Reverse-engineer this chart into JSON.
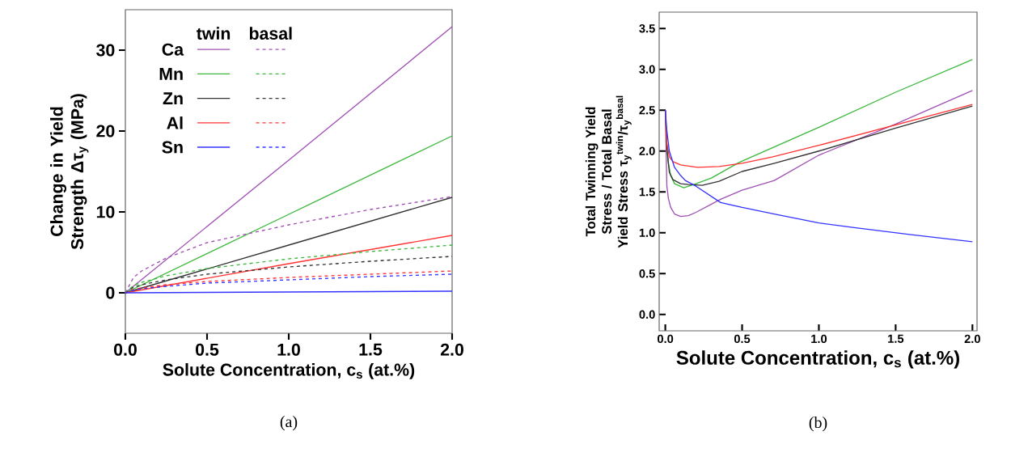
{
  "chart_data": [
    {
      "type": "line",
      "xlabel": "Solute Concentration, c$_{s}$ (at.%)",
      "ylabel": "Change in Yield Strength Δτ$_{y}$ (MPa)",
      "xlim": [
        0,
        2
      ],
      "ylim": [
        -5,
        35
      ],
      "xticks": [
        {
          "value": 0,
          "label": "0.0"
        },
        {
          "value": 0.5,
          "label": "0.5"
        },
        {
          "value": 1,
          "label": "1.0"
        },
        {
          "value": 1.5,
          "label": "1.5"
        },
        {
          "value": 2,
          "label": "2.0"
        }
      ],
      "yticks": [
        0,
        10,
        20,
        30
      ],
      "legend": "top left",
      "annotations": [
        "twin",
        "basal",
        "(a)"
      ],
      "series": [
        {
          "name": "Ca",
          "color": "#a050b4",
          "line_style": "solid",
          "x": [
            0,
            1,
            2
          ],
          "values": [
            0,
            16.4,
            32.9
          ]
        },
        {
          "name": "Mn",
          "color": "#3cb83c",
          "line_style": "solid",
          "x": [
            0,
            1,
            2
          ],
          "values": [
            0,
            9.7,
            19.4
          ]
        },
        {
          "name": "Zn",
          "color": "#333333",
          "line_style": "solid",
          "x": [
            0,
            1,
            2
          ],
          "values": [
            0,
            5.9,
            11.8
          ]
        },
        {
          "name": "Al",
          "color": "#ff3333",
          "line_style": "solid",
          "x": [
            0,
            1,
            2
          ],
          "values": [
            0,
            3.6,
            7.1
          ]
        },
        {
          "name": "Sn",
          "color": "#3333ff",
          "line_style": "solid",
          "x": [
            0,
            1,
            2
          ],
          "values": [
            0,
            0.1,
            0.2
          ]
        },
        {
          "color": "#a050b4",
          "line_style": "dashed",
          "x": [
            0,
            0.05,
            0.1,
            0.25,
            0.5,
            1,
            1.5,
            2
          ],
          "values": [
            0,
            1.9,
            2.7,
            4.3,
            6.2,
            8.4,
            10.3,
            11.9
          ]
        },
        {
          "color": "#3cb83c",
          "line_style": "dashed",
          "x": [
            0,
            0.05,
            0.1,
            0.25,
            0.5,
            1,
            1.5,
            2
          ],
          "values": [
            0,
            0.9,
            1.3,
            2.1,
            3.0,
            4.2,
            5.1,
            5.9
          ]
        },
        {
          "color": "#333333",
          "line_style": "dashed",
          "x": [
            0,
            0.05,
            0.1,
            0.25,
            0.5,
            1,
            1.5,
            2
          ],
          "values": [
            0,
            0.7,
            1.0,
            1.6,
            2.3,
            3.2,
            3.9,
            4.5
          ]
        },
        {
          "color": "#ff3333",
          "line_style": "dashed",
          "x": [
            0,
            0.05,
            0.1,
            0.25,
            0.5,
            1,
            1.5,
            2
          ],
          "values": [
            0,
            0.4,
            0.6,
            1.0,
            1.4,
            1.9,
            2.3,
            2.7
          ]
        },
        {
          "color": "#3333ff",
          "line_style": "dashed",
          "x": [
            0,
            0.05,
            0.1,
            0.25,
            0.5,
            1,
            1.5,
            2
          ],
          "values": [
            0,
            0.3,
            0.5,
            0.8,
            1.2,
            1.6,
            2.0,
            2.3
          ]
        }
      ]
    },
    {
      "type": "line",
      "xlabel": "Solute Concentration, c$_{s}$ (at.%)",
      "ylabel": "Total Twinning Yield Stress / Total Basal Yield Stress τ$_{y}$$^{twin}$/τ$_{y}$$^{basal}$",
      "xlim": [
        -0.04,
        2.03
      ],
      "ylim": [
        -0.2,
        3.7
      ],
      "xticks": [
        {
          "value": 0,
          "label": "0.0"
        },
        {
          "value": 0.5,
          "label": "0.5"
        },
        {
          "value": 1,
          "label": "1.0"
        },
        {
          "value": 1.5,
          "label": "1.5"
        },
        {
          "value": 2,
          "label": "2.0"
        }
      ],
      "yticks": [
        {
          "value": 0,
          "label": "0.0"
        },
        {
          "value": 0.5,
          "label": "0.5"
        },
        {
          "value": 1,
          "label": "1.0"
        },
        {
          "value": 1.5,
          "label": "1.5"
        },
        {
          "value": 2,
          "label": "2.0"
        },
        {
          "value": 2.5,
          "label": "2.5"
        },
        {
          "value": 3,
          "label": "3.0"
        },
        {
          "value": 3.5,
          "label": "3.5"
        }
      ],
      "annotations": [
        "(b)"
      ],
      "series": [
        {
          "color": "#a050b4",
          "x": [
            0,
            0.01,
            0.02,
            0.035,
            0.06,
            0.1,
            0.15,
            0.2,
            0.36,
            0.5,
            0.71,
            1.0,
            1.5,
            2.0
          ],
          "values": [
            2.5,
            1.57,
            1.42,
            1.31,
            1.23,
            1.2,
            1.21,
            1.25,
            1.41,
            1.52,
            1.64,
            1.95,
            2.33,
            2.74
          ]
        },
        {
          "color": "#3cb83c",
          "x": [
            0,
            0.008,
            0.018,
            0.035,
            0.06,
            0.12,
            0.2,
            0.3,
            0.48,
            1.0,
            1.5,
            2.0
          ],
          "values": [
            2.5,
            2.1,
            1.87,
            1.7,
            1.6,
            1.55,
            1.6,
            1.67,
            1.86,
            2.29,
            2.72,
            3.12
          ]
        },
        {
          "color": "#333333",
          "x": [
            0,
            0.01,
            0.026,
            0.05,
            0.1,
            0.15,
            0.24,
            0.35,
            0.5,
            0.71,
            1.0,
            1.5,
            2.0
          ],
          "values": [
            2.5,
            2.05,
            1.74,
            1.65,
            1.6,
            1.59,
            1.58,
            1.63,
            1.75,
            1.85,
            2.0,
            2.28,
            2.55
          ]
        },
        {
          "color": "#ff3333",
          "x": [
            0,
            0.01,
            0.026,
            0.05,
            0.1,
            0.21,
            0.35,
            0.5,
            0.7,
            1.0,
            1.5,
            2.0
          ],
          "values": [
            2.5,
            2.1,
            1.93,
            1.87,
            1.83,
            1.8,
            1.81,
            1.85,
            1.93,
            2.07,
            2.32,
            2.57
          ]
        },
        {
          "color": "#3333ff",
          "x": [
            0,
            0.01,
            0.026,
            0.06,
            0.1,
            0.13,
            0.2,
            0.36,
            0.5,
            0.71,
            1.0,
            1.24,
            1.59,
            2.0
          ],
          "values": [
            2.5,
            2.25,
            2.0,
            1.8,
            1.7,
            1.64,
            1.57,
            1.37,
            1.31,
            1.23,
            1.12,
            1.06,
            0.98,
            0.89
          ]
        }
      ]
    }
  ]
}
